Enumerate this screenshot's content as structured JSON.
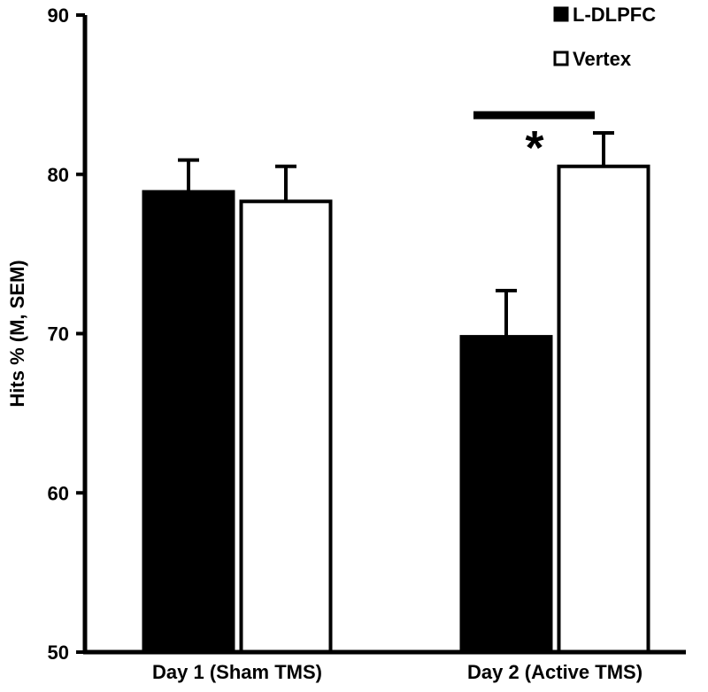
{
  "chart_data": {
    "type": "bar",
    "categories": [
      "Day 1 (Sham TMS)",
      "Day 2 (Active TMS)"
    ],
    "series": [
      {
        "name": "L-DLPFC",
        "values": [
          78.9,
          69.8
        ],
        "errors": [
          2.0,
          2.9
        ],
        "color": "#000000"
      },
      {
        "name": "Vertex",
        "values": [
          78.3,
          80.5
        ],
        "errors": [
          2.2,
          2.1
        ],
        "color": "#ffffff"
      }
    ],
    "title": "",
    "xlabel": "",
    "ylabel": "Hits % (M, SEM)",
    "ylim": [
      50,
      90
    ],
    "yticks": [
      50,
      60,
      70,
      80,
      90
    ],
    "grid": false,
    "legend": "top-right",
    "annotations": [
      {
        "text": "*",
        "category": "Day 2 (Active TMS)"
      }
    ]
  }
}
